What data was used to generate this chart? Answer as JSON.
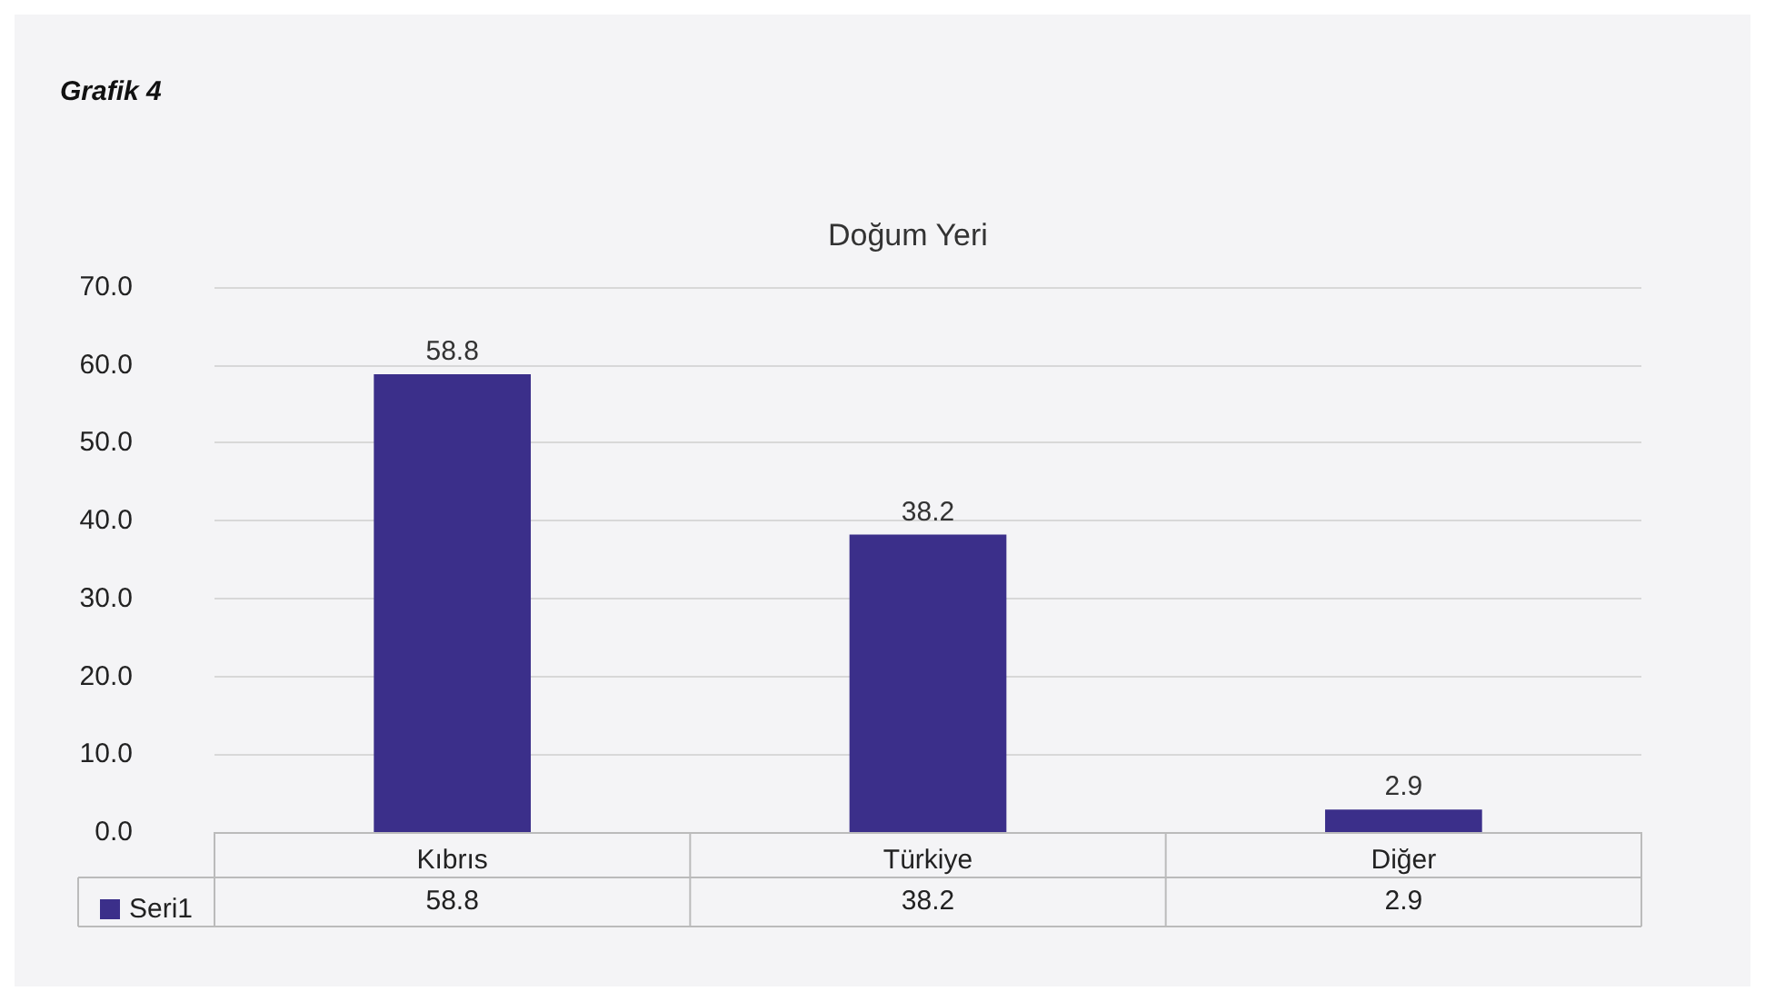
{
  "chart_data": {
    "type": "bar",
    "title": "Doğum Yeri",
    "annotations": [
      "Grafik 4",
      "58.8",
      "38.2",
      "2.9"
    ],
    "categories": [
      "Kıbrıs",
      "Türkiye",
      "Diğer"
    ],
    "series": [
      {
        "name": "Seri1",
        "color": "#3b2f8a",
        "values": [
          58.8,
          38.2,
          2.9
        ]
      }
    ],
    "ylim": [
      0,
      70
    ],
    "yticks": [
      {
        "value": 0,
        "label": "0.0"
      },
      {
        "value": 10,
        "label": "10.0"
      },
      {
        "value": 20,
        "label": "20.0"
      },
      {
        "value": 30,
        "label": "30.0"
      },
      {
        "value": 40,
        "label": "40.0"
      },
      {
        "value": 50,
        "label": "50.0"
      },
      {
        "value": 60,
        "label": "60.0"
      },
      {
        "value": 70,
        "label": "70.0"
      }
    ],
    "grid": "y",
    "data_labels": true,
    "legend": "bottom left"
  }
}
